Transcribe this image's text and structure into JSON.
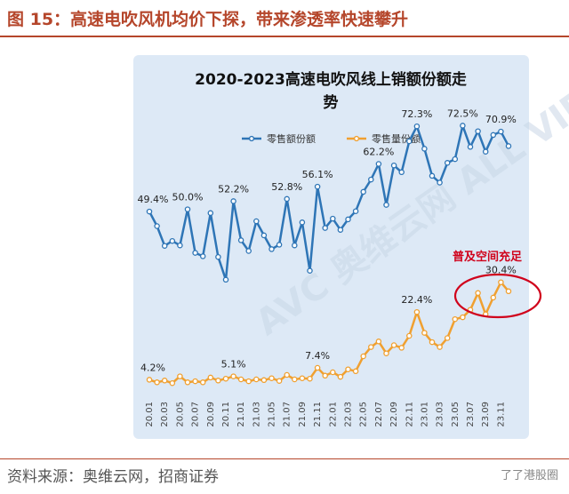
{
  "figure": {
    "title": "图 15：高速电吹风机均价下探，带来渗透率快速攀升",
    "source": "资料来源：奥维云网，招商证券",
    "corner_watermark": "了了港股圈",
    "colors": {
      "title": "#b5462b",
      "panel": "#dde9f6"
    }
  },
  "annotation": {
    "text": "普及空间充足",
    "color": "#d0021b"
  },
  "chart_data": {
    "type": "line",
    "title_line1": "2020-2023高速电吹风线上销额份额走",
    "title_line2": "势",
    "unit": "%",
    "x_tick_labels": [
      "20.01",
      "20.03",
      "20.05",
      "20.07",
      "20.09",
      "20.11",
      "21.01",
      "21.03",
      "21.05",
      "21.07",
      "21.09",
      "21.11",
      "22.01",
      "22.03",
      "22.05",
      "22.07",
      "22.09",
      "22.11",
      "23.01",
      "23.03",
      "23.05",
      "23.07",
      "23.09",
      "23.11"
    ],
    "x": [
      "20.01",
      "20.02",
      "20.03",
      "20.04",
      "20.05",
      "20.06",
      "20.07",
      "20.08",
      "20.09",
      "20.10",
      "20.11",
      "20.12",
      "21.01",
      "21.02",
      "21.03",
      "21.04",
      "21.05",
      "21.06",
      "21.07",
      "21.08",
      "21.09",
      "21.10",
      "21.11",
      "21.12",
      "22.01",
      "22.02",
      "22.03",
      "22.04",
      "22.05",
      "22.06",
      "22.07",
      "22.08",
      "22.09",
      "22.10",
      "22.11",
      "22.12",
      "23.01",
      "23.02",
      "23.03",
      "23.04",
      "23.05",
      "23.06",
      "23.07",
      "23.08",
      "23.09",
      "23.10",
      "23.11",
      "23.12"
    ],
    "series": [
      {
        "name": "零售额份额",
        "color": "#2e75b6",
        "values": [
          49.4,
          45.5,
          40.2,
          41.5,
          40.3,
          50.0,
          38.3,
          37.4,
          49.0,
          37.2,
          31.1,
          52.2,
          41.7,
          38.8,
          46.8,
          43.0,
          39.3,
          40.5,
          52.8,
          40.3,
          46.5,
          33.5,
          56.1,
          45.0,
          47.5,
          44.5,
          47.3,
          49.5,
          54.7,
          58.0,
          62.2,
          51.2,
          61.8,
          60.0,
          68.3,
          72.3,
          66.3,
          59.0,
          57.2,
          62.5,
          63.5,
          72.5,
          66.8,
          71.0,
          65.5,
          70.0,
          70.9,
          67.0
        ]
      },
      {
        "name": "零售量份额",
        "color": "#f0a030",
        "values": [
          4.2,
          3.5,
          4.0,
          3.3,
          5.1,
          3.5,
          3.8,
          3.5,
          4.8,
          4.0,
          4.5,
          5.1,
          4.3,
          3.8,
          4.3,
          4.1,
          4.6,
          3.9,
          5.5,
          4.3,
          4.6,
          4.5,
          7.4,
          5.3,
          6.2,
          5.0,
          7.0,
          6.5,
          10.5,
          13.0,
          14.5,
          11.3,
          13.5,
          12.8,
          16.0,
          22.4,
          16.8,
          14.3,
          13.0,
          15.4,
          20.5,
          21.0,
          23.0,
          27.5,
          21.8,
          26.3,
          30.4,
          28.0
        ]
      }
    ],
    "point_labels": [
      {
        "series": 0,
        "index": 0,
        "text": "49.4%"
      },
      {
        "series": 0,
        "index": 5,
        "text": "50.0%"
      },
      {
        "series": 0,
        "index": 11,
        "text": "52.2%"
      },
      {
        "series": 0,
        "index": 18,
        "text": "52.8%"
      },
      {
        "series": 0,
        "index": 22,
        "text": "56.1%"
      },
      {
        "series": 0,
        "index": 30,
        "text": "62.2%"
      },
      {
        "series": 0,
        "index": 35,
        "text": "72.3%"
      },
      {
        "series": 0,
        "index": 41,
        "text": "72.5%"
      },
      {
        "series": 0,
        "index": 46,
        "text": "70.9%"
      },
      {
        "series": 1,
        "index": 0,
        "text": "4.2%"
      },
      {
        "series": 1,
        "index": 11,
        "text": "5.1%"
      },
      {
        "series": 1,
        "index": 22,
        "text": "7.4%"
      },
      {
        "series": 1,
        "index": 35,
        "text": "22.4%"
      },
      {
        "series": 1,
        "index": 46,
        "text": "30.4%"
      }
    ],
    "ylim": [
      0,
      80
    ],
    "grid": false,
    "legend_position": "top-left",
    "watermark": "AVC 奥维云网 ALL VIEW CLOUD"
  }
}
